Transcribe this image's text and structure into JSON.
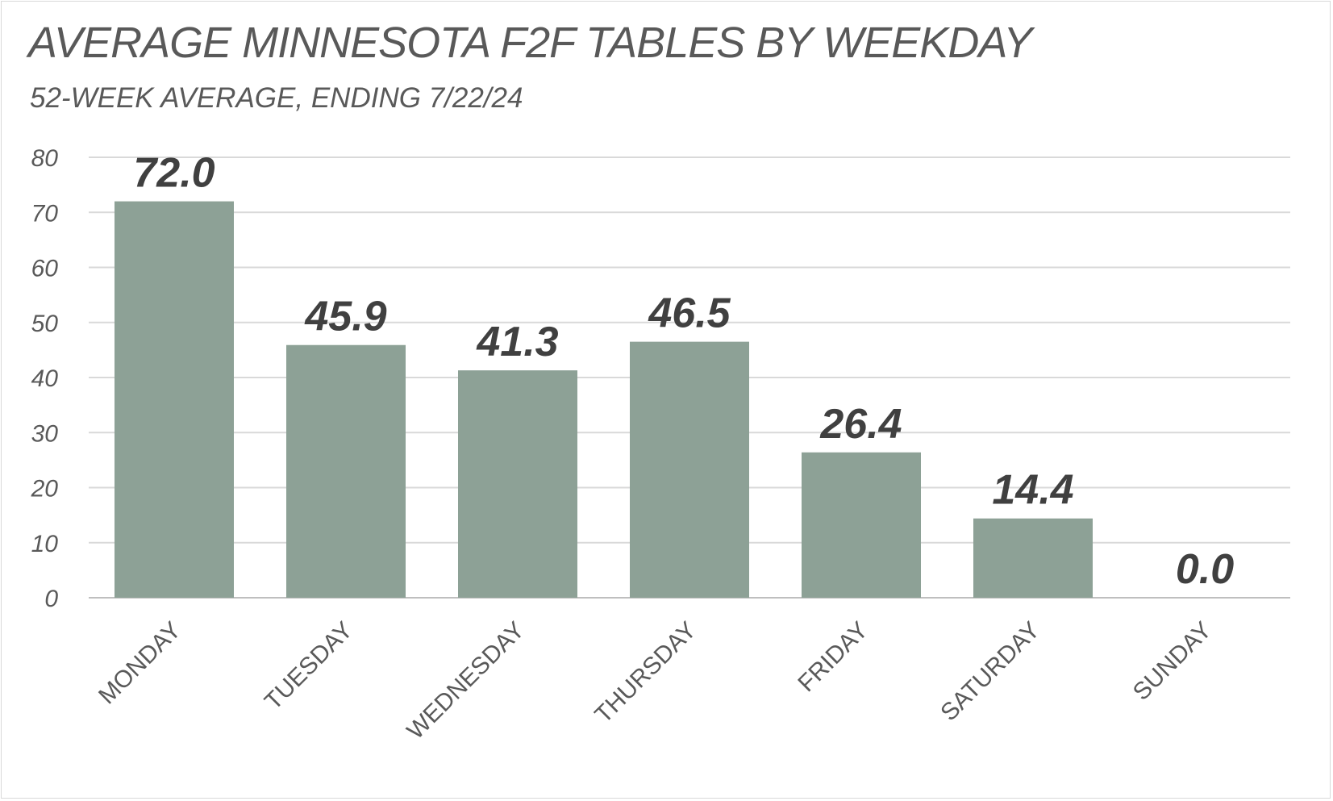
{
  "chart_data": {
    "type": "bar",
    "title": "AVERAGE MINNESOTA F2F TABLES BY WEEKDAY",
    "subtitle": "52-WEEK AVERAGE, ENDING 7/22/24",
    "categories": [
      "MONDAY",
      "TUESDAY",
      "WEDNESDAY",
      "THURSDAY",
      "FRIDAY",
      "SATURDAY",
      "SUNDAY"
    ],
    "values": [
      72.0,
      45.9,
      41.3,
      46.5,
      26.4,
      14.4,
      0.0
    ],
    "data_labels": [
      "72.0",
      "45.9",
      "41.3",
      "46.5",
      "26.4",
      "14.4",
      "0.0"
    ],
    "yticks": [
      "0",
      "10",
      "20",
      "30",
      "40",
      "50",
      "60",
      "70",
      "80"
    ],
    "ylim": [
      0,
      80
    ],
    "grid": true,
    "legend": "none",
    "colors": {
      "bar": "#8da196",
      "grid": "#d9d9d9",
      "text": "#595959",
      "label": "#404040"
    }
  }
}
